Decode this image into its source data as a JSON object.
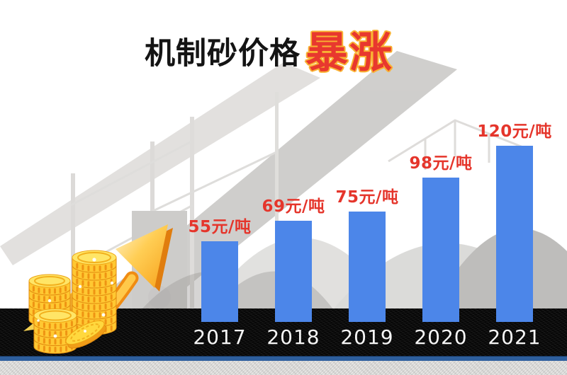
{
  "page": {
    "background_color": "#ffffff"
  },
  "title": {
    "black": "机制砂价格",
    "red": "暴涨",
    "black_color": "#141414",
    "red_color": "#e8382e",
    "red_outline_color": "#f9b233"
  },
  "chart_data": {
    "type": "bar",
    "title": "机制砂价格暴涨",
    "categories": [
      "2017",
      "2018",
      "2019",
      "2020",
      "2021"
    ],
    "values": [
      55,
      69,
      75,
      98,
      120
    ],
    "value_labels": [
      "55元/吨",
      "69元/吨",
      "75元/吨",
      "98元/吨",
      "120元/吨"
    ],
    "unit": "元/吨",
    "ylim": [
      0,
      130
    ],
    "gridlines": false,
    "legend": false,
    "bar_color": "#4c86e9",
    "value_label_color": "#e5352b",
    "tick_label_color": "#f5f5f5",
    "axis_strip_color": "#070707",
    "baseline_accent_color": "#2e5f9e"
  },
  "decorations": {
    "coins_icon": "gold-coin-stacks",
    "arrow_icon": "rising-arrow",
    "background": "faded-crushing-plant-photo"
  }
}
